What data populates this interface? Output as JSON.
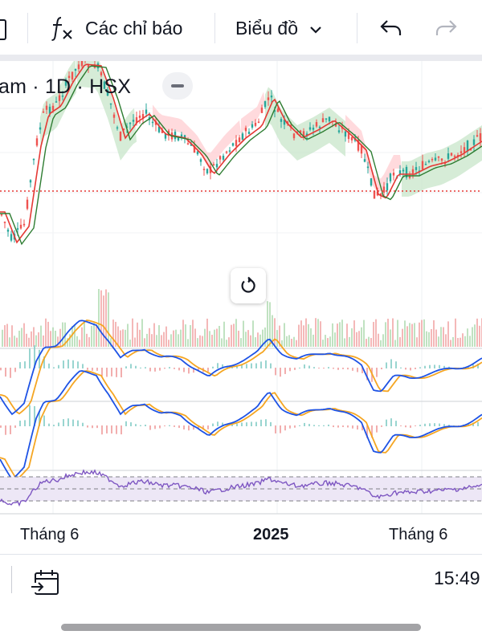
{
  "toolbar": {
    "left_icon": "chart-type-icon",
    "indicators_icon": "function-fx-icon",
    "indicators_label": "Các chỉ báo",
    "chart_menu_label": "Biểu đồ",
    "chart_menu_icon": "chevron-down-icon",
    "undo_icon": "undo-arrow-icon",
    "redo_icon": "redo-arrow-icon"
  },
  "legend": {
    "symbol_title": "am · 1D · HSX",
    "collapse_icon": "minus-icon"
  },
  "chart": {
    "reset_icon": "reset-rotate-icon",
    "x_labels": [
      "Tháng 6",
      "2025",
      "Tháng 6"
    ],
    "colors": {
      "up": "#26a69a",
      "down": "#ef5350",
      "ma_fast": "#e53935",
      "ma_slow": "#2e7d32",
      "cloud_up": "#c8e6c9",
      "cloud_down": "#ffcdd2",
      "macd": "#1e53e5",
      "signal": "#f5a623",
      "rsi": "#7e57c2",
      "rsi_band": "#ede7f6",
      "price_line": "#e53935"
    }
  },
  "bottom": {
    "calendar_icon": "calendar-goto-icon",
    "time": "15:49"
  }
}
